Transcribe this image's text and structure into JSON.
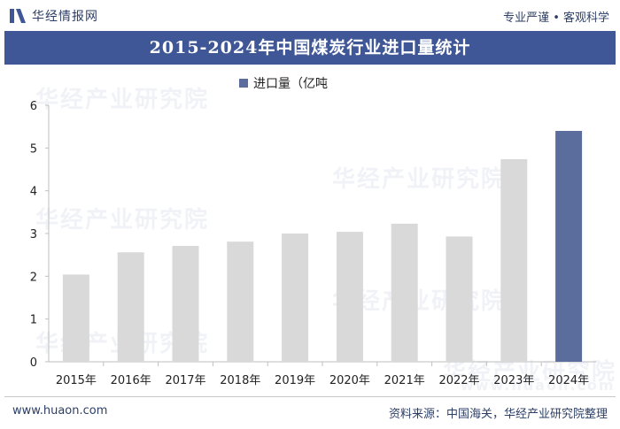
{
  "header": {
    "logo_text": "华经情报网",
    "slogan": "专业严谨 • 客观科学"
  },
  "title": "2015-2024年中国煤炭行业进口量统计",
  "legend": {
    "label": "进口量（亿吨"
  },
  "watermark": {
    "text": "华经产业研究院",
    "url": "www.huaon.com"
  },
  "footer": {
    "url": "www.huaon.com",
    "source": "资料来源：中国海关，华经产业研究院整理"
  },
  "colors": {
    "bar_default": "#d9d9d9",
    "bar_highlight": "#5b6d9c",
    "title_bg": "#3f5796"
  },
  "chart_data": {
    "type": "bar",
    "categories": [
      "2015年",
      "2016年",
      "2017年",
      "2018年",
      "2019年",
      "2020年",
      "2021年",
      "2022年",
      "2023年",
      "2024年"
    ],
    "series": [
      {
        "name": "进口量（亿吨",
        "values": [
          2.04,
          2.56,
          2.71,
          2.81,
          3.0,
          3.04,
          3.23,
          2.93,
          4.74,
          5.4
        ]
      }
    ],
    "highlight_index": 9,
    "ylim": [
      0,
      6
    ],
    "yticks": [
      0,
      1,
      2,
      3,
      4,
      5,
      6
    ],
    "xlabel": "",
    "ylabel": "",
    "grid": false,
    "legend_position": "top"
  }
}
